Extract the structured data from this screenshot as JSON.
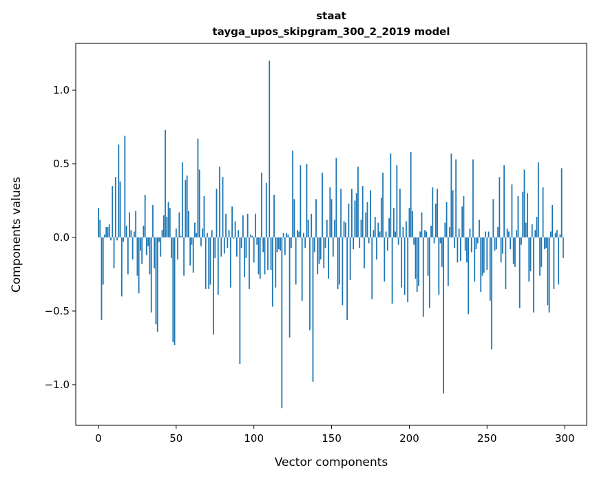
{
  "chart_data": {
    "type": "bar",
    "title": "staat",
    "subtitle": "tayga_upos_skipgram_300_2_2019 model",
    "xlabel": "Vector components",
    "ylabel": "Components values",
    "xlim": [
      -14.6,
      314.1
    ],
    "ylim": [
      -1.276,
      1.318
    ],
    "xticks": [
      0,
      50,
      100,
      150,
      200,
      250,
      300
    ],
    "xtick_labels": [
      "0",
      "50",
      "100",
      "150",
      "200",
      "250",
      "300"
    ],
    "yticks": [
      -1.0,
      -0.5,
      0.0,
      0.5,
      1.0
    ],
    "ytick_labels": [
      "−1.0",
      "−0.5",
      "0.0",
      "0.5",
      "1.0"
    ],
    "grid": false,
    "color": "#1f77b4",
    "values": [
      0.2,
      0.12,
      -0.56,
      -0.32,
      0.02,
      0.07,
      0.07,
      0.09,
      -0.02,
      0.35,
      -0.21,
      0.41,
      -0.02,
      0.63,
      0.38,
      -0.4,
      -0.03,
      0.69,
      0.08,
      -0.25,
      0.17,
      0.05,
      -0.15,
      0.04,
      0.18,
      -0.26,
      -0.38,
      -0.09,
      -0.18,
      0.08,
      0.29,
      -0.12,
      -0.06,
      -0.25,
      -0.51,
      0.22,
      -0.21,
      -0.59,
      -0.64,
      -0.03,
      -0.13,
      0.05,
      0.15,
      0.73,
      0.14,
      0.24,
      0.2,
      -0.14,
      -0.71,
      -0.73,
      0.06,
      -0.15,
      0.17,
      0.01,
      0.51,
      -0.26,
      0.39,
      0.42,
      0.18,
      -0.19,
      -0.05,
      -0.24,
      0.1,
      0.03,
      0.67,
      0.46,
      -0.06,
      0.06,
      0.28,
      -0.35,
      0.03,
      -0.35,
      -0.32,
      0.05,
      -0.66,
      -0.14,
      0.33,
      -0.39,
      0.48,
      -0.13,
      0.41,
      -0.11,
      0.16,
      -0.07,
      0.05,
      -0.34,
      0.21,
      -0.01,
      0.11,
      -0.13,
      0.05,
      -0.86,
      -0.07,
      0.15,
      -0.27,
      -0.14,
      0.16,
      -0.35,
      0.02,
      0.01,
      -0.17,
      0.16,
      -0.05,
      -0.25,
      -0.28,
      0.44,
      -0.1,
      -0.25,
      0.37,
      -0.22,
      1.2,
      -0.22,
      -0.47,
      0.29,
      -0.34,
      -0.1,
      -0.08,
      -0.09,
      -1.16,
      0.03,
      -0.12,
      0.03,
      0.02,
      -0.68,
      -0.07,
      0.59,
      0.26,
      -0.32,
      0.05,
      0.04,
      0.49,
      -0.43,
      0.03,
      -0.07,
      0.5,
      0.12,
      -0.63,
      0.16,
      -0.98,
      -0.1,
      0.26,
      -0.25,
      -0.18,
      -0.15,
      0.44,
      -0.21,
      -0.07,
      0.12,
      -0.28,
      0.34,
      0.26,
      -0.13,
      0.12,
      0.54,
      -0.35,
      -0.32,
      0.33,
      -0.46,
      0.11,
      0.1,
      -0.56,
      0.23,
      -0.29,
      0.33,
      -0.08,
      0.25,
      0.3,
      0.48,
      -0.07,
      0.12,
      0.35,
      -0.21,
      0.17,
      0.24,
      -0.04,
      0.32,
      -0.42,
      0.05,
      0.14,
      -0.15,
      0.1,
      0.04,
      0.27,
      0.44,
      -0.3,
      0.04,
      -0.09,
      0.13,
      0.57,
      -0.45,
      0.2,
      0.04,
      0.49,
      -0.05,
      0.33,
      -0.34,
      0.07,
      -0.39,
      0.11,
      -0.44,
      0.2,
      0.58,
      0.18,
      -0.05,
      -0.28,
      -0.37,
      -0.33,
      0.04,
      0.17,
      -0.54,
      0.05,
      0.04,
      -0.26,
      -0.48,
      0.08,
      0.34,
      -0.04,
      0.23,
      0.33,
      -0.39,
      -0.04,
      -0.2,
      -1.06,
      0.1,
      0.24,
      -0.33,
      0.07,
      0.57,
      0.32,
      -0.07,
      0.53,
      -0.17,
      0.06,
      -0.16,
      0.21,
      0.28,
      -0.09,
      -0.17,
      -0.52,
      0.06,
      -0.1,
      0.53,
      -0.3,
      -0.08,
      -0.04,
      0.12,
      -0.37,
      -0.26,
      -0.24,
      0.04,
      -0.22,
      0.04,
      -0.43,
      -0.76,
      0.26,
      -0.09,
      -0.08,
      0.07,
      0.41,
      -0.17,
      -0.11,
      0.49,
      -0.35,
      0.06,
      0.04,
      -0.08,
      0.36,
      -0.18,
      -0.2,
      0.05,
      0.28,
      -0.48,
      -0.05,
      0.31,
      0.46,
      0.1,
      0.3,
      -0.3,
      -0.23,
      0.09,
      -0.51,
      0.05,
      0.14,
      0.51,
      -0.26,
      -0.2,
      0.34,
      -0.08,
      -0.07,
      -0.46,
      -0.51,
      0.04,
      0.22,
      -0.35,
      0.03,
      0.05,
      -0.32,
      0.02,
      0.47,
      -0.14
    ]
  }
}
